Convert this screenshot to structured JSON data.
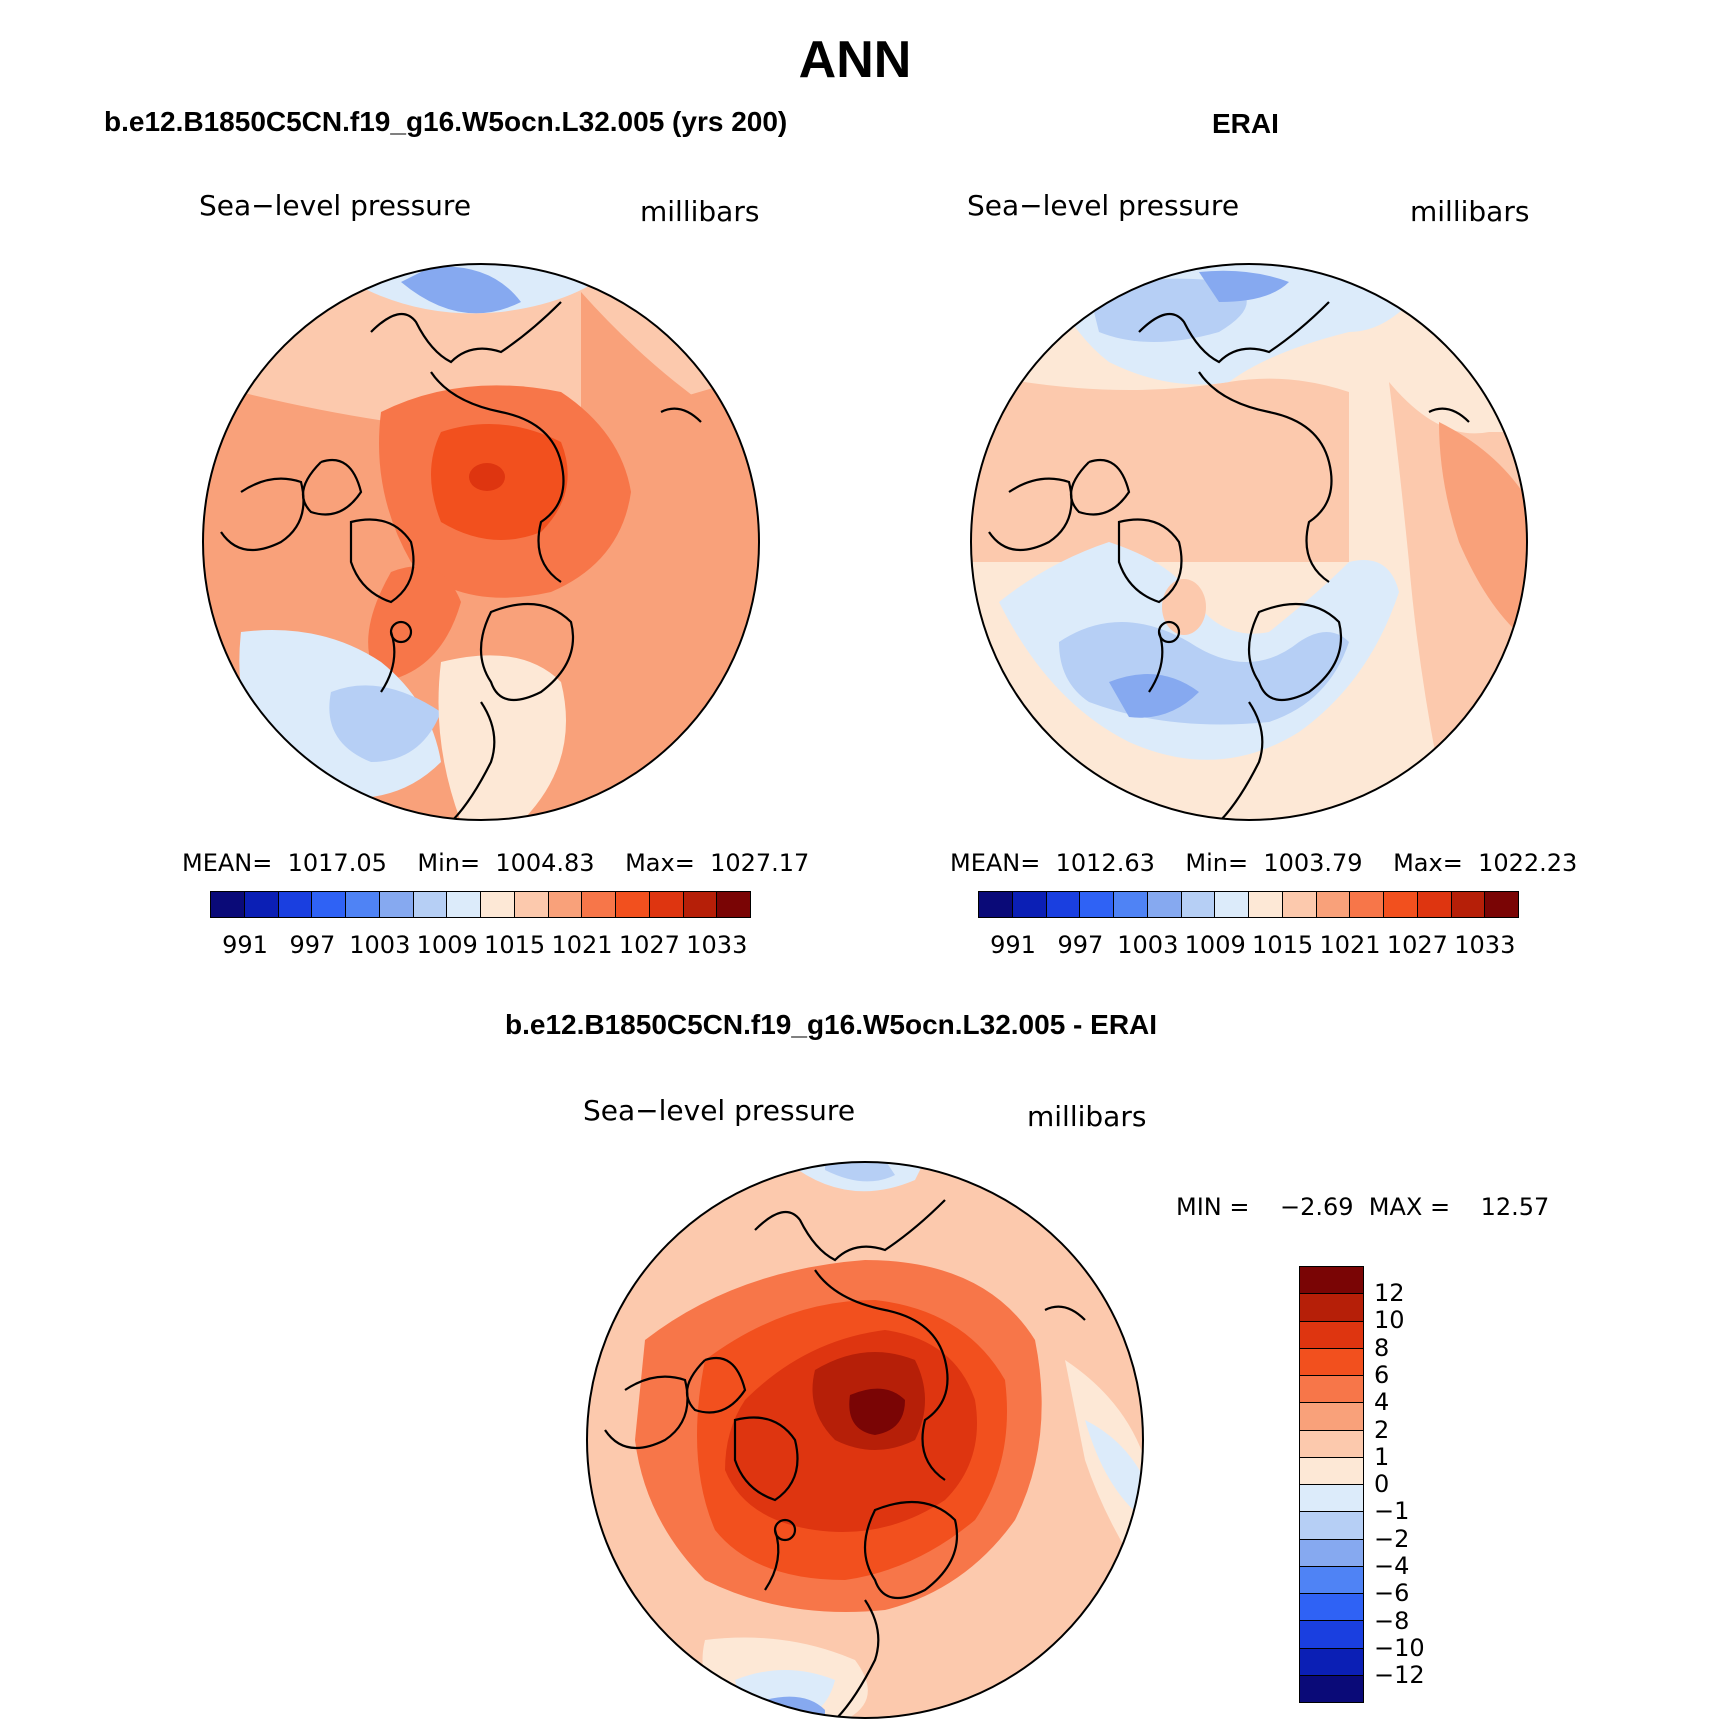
{
  "figure_title": "ANN",
  "panels": {
    "model": {
      "title": "b.e12.B1850C5CN.f19_g16.W5ocn.L32.005 (yrs 200)",
      "variable": "Sea−level pressure",
      "units": "millibars",
      "stats": "MEAN=  1017.05    Min=  1004.83    Max=  1027.17",
      "colorbar_ticks": [
        "991",
        "997",
        "1003",
        "1009",
        "1015",
        "1021",
        "1027",
        "1033"
      ]
    },
    "obs": {
      "title": "ERAI",
      "variable": "Sea−level pressure",
      "units": "millibars",
      "stats": "MEAN=  1012.63    Min=  1003.79    Max=  1022.23",
      "colorbar_ticks": [
        "991",
        "997",
        "1003",
        "1009",
        "1015",
        "1021",
        "1027",
        "1033"
      ]
    },
    "diff": {
      "title": "b.e12.B1850C5CN.f19_g16.W5ocn.L32.005 - ERAI",
      "variable": "Sea−level pressure",
      "units": "millibars",
      "stats": "MIN =    −2.69  MAX =    12.57",
      "colorbar_ticks": [
        "12",
        "10",
        "8",
        "6",
        "4",
        "2",
        "1",
        "0",
        "−1",
        "−2",
        "−4",
        "−6",
        "−8",
        "−10",
        "−12"
      ]
    }
  },
  "colors": {
    "abs_palette": [
      "#0a0a78",
      "#0b1fb5",
      "#1a3fe0",
      "#2f62f5",
      "#4f83f5",
      "#86a9f0",
      "#b6cff5",
      "#dcebfa",
      "#fde8d6",
      "#fcc9ad",
      "#f9a17a",
      "#f77649",
      "#f2501e",
      "#de3510",
      "#b61f08",
      "#7a0505"
    ],
    "diff_palette": [
      "#7a0505",
      "#b61f08",
      "#de3510",
      "#f2501e",
      "#f77649",
      "#f9a17a",
      "#fcc9ad",
      "#fde8d6",
      "#dcebfa",
      "#b6cff5",
      "#86a9f0",
      "#4f83f5",
      "#2f62f5",
      "#1a3fe0",
      "#0b1fb5",
      "#0a0a78"
    ]
  }
}
